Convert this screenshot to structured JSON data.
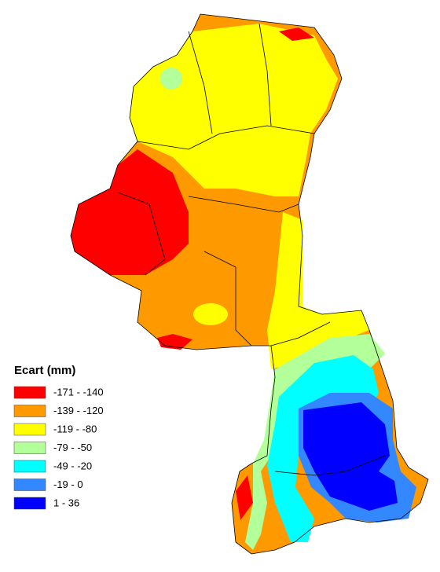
{
  "legend": {
    "title": "Ecart (mm)",
    "items": [
      {
        "label": "-171 - -140",
        "color": "#ff0000"
      },
      {
        "label": "-139 - -120",
        "color": "#ff9900"
      },
      {
        "label": "-119 - -80",
        "color": "#ffff00"
      },
      {
        "label": "-79 - -50",
        "color": "#b3ff99"
      },
      {
        "label": "-49 - -20",
        "color": "#00ffff"
      },
      {
        "label": "-19 - 0",
        "color": "#3388ff"
      },
      {
        "label": "1 - 36",
        "color": "#0000ff"
      }
    ]
  }
}
